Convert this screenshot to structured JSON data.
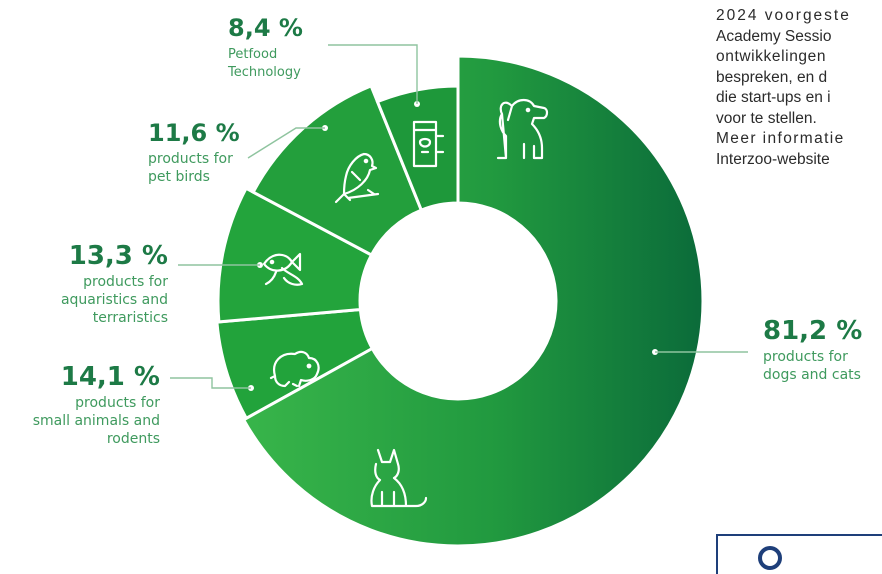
{
  "article_lines": [
    "2024 voorgeste",
    "Academy Sessio",
    "ontwikkelingen",
    "bespreken, en d",
    "die start-ups en i",
    "voor te stellen.",
    "Meer informatie",
    "Interzoo-website"
  ],
  "chart_data": {
    "type": "donut",
    "title": "",
    "unit": "%",
    "colors": {
      "main": "#2aa143",
      "main_dark": "#0c6f3c",
      "small": "#22a33b",
      "label_pct": "#1d7a46",
      "label_desc": "#3f9a5e"
    },
    "slices": [
      {
        "value": 81.2,
        "display": "81,2 %",
        "label_lines": [
          "products for",
          "dogs and cats"
        ],
        "icons": [
          "dog-icon",
          "cat-icon"
        ]
      },
      {
        "value": 14.1,
        "display": "14,1 %",
        "label_lines": [
          "products for",
          "small animals and",
          "rodents"
        ],
        "icons": [
          "hamster-icon"
        ]
      },
      {
        "value": 13.3,
        "display": "13,3 %",
        "label_lines": [
          "products for",
          "aquaristics and",
          "terraristics"
        ],
        "icons": [
          "fish-icon"
        ]
      },
      {
        "value": 11.6,
        "display": "11,6 %",
        "label_lines": [
          "products for",
          "pet birds"
        ],
        "icons": [
          "bird-icon"
        ]
      },
      {
        "value": 8.4,
        "display": "8,4 %",
        "label_lines": [
          "Petfood",
          "Technology"
        ],
        "icons": [
          "petfood-bag-icon"
        ]
      }
    ]
  }
}
